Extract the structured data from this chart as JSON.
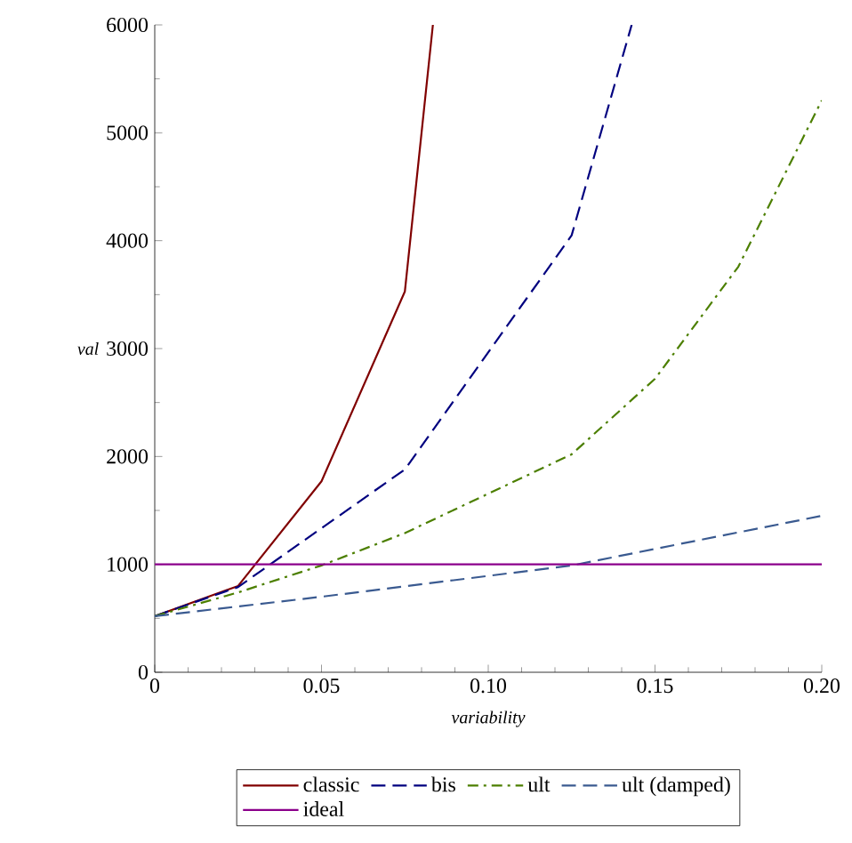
{
  "chart_data": {
    "type": "line",
    "xlabel": "variability",
    "ylabel": "val",
    "xlim": [
      0,
      0.2
    ],
    "ylim": [
      0,
      6000
    ],
    "xticks": [
      0,
      0.05,
      {
        "value": 0.1,
        "label": "0.10"
      },
      0.15,
      {
        "value": 0.2,
        "label": "0.20"
      }
    ],
    "yticks": [
      0,
      1000,
      2000,
      3000,
      4000,
      5000,
      6000
    ],
    "legend": "bottom",
    "grid": false,
    "marker": "none",
    "series": [
      {
        "name": "classic",
        "color": "#800000",
        "line_style": "solid",
        "x": [
          0,
          0.025,
          0.05,
          0.075,
          0.0834
        ],
        "values": [
          520,
          800,
          1770,
          3530,
          6000
        ]
      },
      {
        "name": "bis",
        "color": "#00007f",
        "line_style": "dashed",
        "x": [
          0,
          0.025,
          0.075,
          0.125,
          0.143
        ],
        "values": [
          520,
          790,
          1880,
          4050,
          6000
        ]
      },
      {
        "name": "ult",
        "color": "#4c7f00",
        "line_style": "dashdot",
        "x": [
          0,
          0.025,
          0.05,
          0.075,
          0.125,
          0.15,
          0.175,
          0.2
        ],
        "values": [
          520,
          740,
          990,
          1290,
          2020,
          2720,
          3760,
          5300
        ]
      },
      {
        "name": "ult (damped)",
        "color": "#3a5a90",
        "line_style": "dashed",
        "x": [
          0,
          0.05,
          0.125,
          0.2
        ],
        "values": [
          520,
          700,
          990,
          1450
        ]
      },
      {
        "name": "ideal",
        "color": "#8b008b",
        "line_style": "solid",
        "x": [
          0,
          0.2
        ],
        "values": [
          1000,
          1000
        ]
      }
    ]
  }
}
